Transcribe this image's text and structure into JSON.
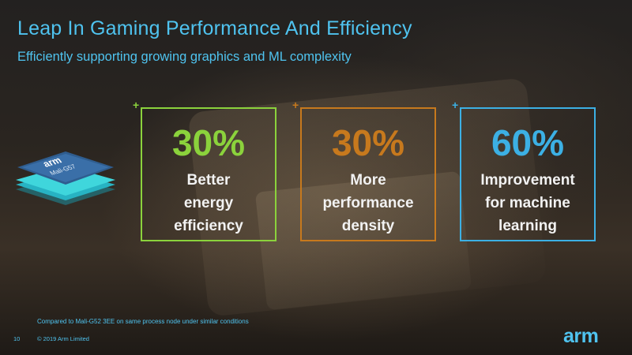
{
  "slide": {
    "title": "Leap In Gaming Performance And Efficiency",
    "subtitle": "Efficiently supporting growing graphics and ML complexity"
  },
  "chip": {
    "brand": "arm",
    "model": "Mali-G57",
    "color": "#35c9d6"
  },
  "cards": [
    {
      "plus": "+",
      "value": "30%",
      "lines": [
        "Better",
        "energy",
        "efficiency"
      ],
      "color": "#8bd23c"
    },
    {
      "plus": "+",
      "value": "30%",
      "lines": [
        "More",
        "performance",
        "density"
      ],
      "color": "#c7791d"
    },
    {
      "plus": "+",
      "value": "60%",
      "lines": [
        "Improvement",
        "for machine",
        "learning"
      ],
      "color": "#3cb0e4"
    }
  ],
  "footer": {
    "note": "Compared to Mali-G52 3EE on same process node under similar conditions",
    "page_number": "10",
    "copyright": "© 2019 Arm Limited",
    "logo": "arm"
  }
}
